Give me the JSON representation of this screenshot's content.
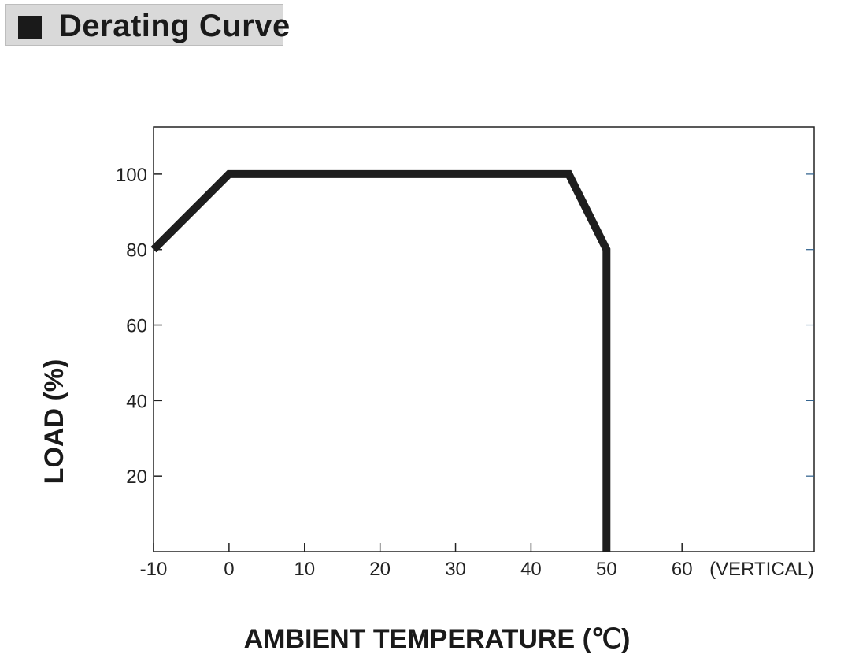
{
  "header": {
    "title": "Derating Curve"
  },
  "chart_data": {
    "type": "line",
    "title": "",
    "xlabel": "AMBIENT TEMPERATURE (℃)",
    "ylabel": "LOAD (%)",
    "x_ticks": [
      "-10",
      "0",
      "10",
      "20",
      "30",
      "40",
      "50",
      "60"
    ],
    "x_tick_suffix": "(VERTICAL)",
    "y_ticks": [
      "20",
      "40",
      "60",
      "80",
      "100"
    ],
    "xlim": [
      -10,
      77.5
    ],
    "ylim": [
      0,
      112.5
    ],
    "grid": false,
    "series": [
      {
        "x": [
          -10,
          0,
          45,
          50,
          50
        ],
        "y": [
          80,
          100,
          100,
          80,
          0
        ]
      }
    ],
    "colors": {
      "line": "#1e1e1e",
      "frame": "#222222",
      "minor_tick": "#2a5d8a"
    }
  }
}
